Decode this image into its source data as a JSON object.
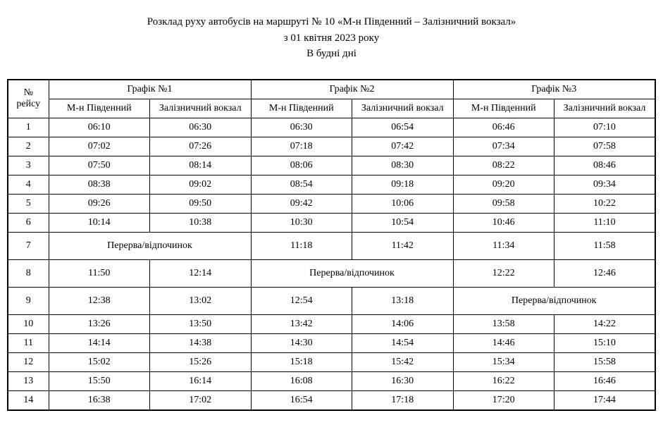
{
  "title": {
    "line1": "Розклад руху автобусів на маршруті № 10  «М-н Південний – Залізничний вокзал»",
    "line2": "з 01 квітня 2023 року",
    "line3": "В будні дні"
  },
  "headers": {
    "trip_no": "№ рейсу",
    "g1": "Графік №1",
    "g2": "Графік №2",
    "g3": "Графік №3",
    "stop_a": "М-н Південний",
    "stop_b": "Залізничний вокзал"
  },
  "break_label": "Перерва/відпочинок",
  "rows": [
    {
      "n": "1",
      "g1a": "06:10",
      "g1b": "06:30",
      "g2a": "06:30",
      "g2b": "06:54",
      "g3a": "06:46",
      "g3b": "07:10"
    },
    {
      "n": "2",
      "g1a": "07:02",
      "g1b": "07:26",
      "g2a": "07:18",
      "g2b": "07:42",
      "g3a": "07:34",
      "g3b": "07:58"
    },
    {
      "n": "3",
      "g1a": "07:50",
      "g1b": "08:14",
      "g2a": "08:06",
      "g2b": "08:30",
      "g3a": "08:22",
      "g3b": "08:46"
    },
    {
      "n": "4",
      "g1a": "08:38",
      "g1b": "09:02",
      "g2a": "08:54",
      "g2b": "09:18",
      "g3a": "09:20",
      "g3b": "09:34"
    },
    {
      "n": "5",
      "g1a": "09:26",
      "g1b": "09:50",
      "g2a": "09:42",
      "g2b": "10:06",
      "g3a": "09:58",
      "g3b": "10:22"
    },
    {
      "n": "6",
      "g1a": "10:14",
      "g1b": "10:38",
      "g2a": "10:30",
      "g2b": "10:54",
      "g3a": "10:46",
      "g3b": "11:10"
    },
    {
      "n": "7",
      "g1_break": true,
      "g2a": "11:18",
      "g2b": "11:42",
      "g3a": "11:34",
      "g3b": "11:58",
      "tall": true
    },
    {
      "n": "8",
      "g1a": "11:50",
      "g1b": "12:14",
      "g2_break": true,
      "g3a": "12:22",
      "g3b": "12:46",
      "tall": true
    },
    {
      "n": "9",
      "g1a": "12:38",
      "g1b": "13:02",
      "g2a": "12:54",
      "g2b": "13:18",
      "g3_break": true,
      "tall": true
    },
    {
      "n": "10",
      "g1a": "13:26",
      "g1b": "13:50",
      "g2a": "13:42",
      "g2b": "14:06",
      "g3a": "13:58",
      "g3b": "14:22"
    },
    {
      "n": "11",
      "g1a": "14:14",
      "g1b": "14:38",
      "g2a": "14:30",
      "g2b": "14:54",
      "g3a": "14:46",
      "g3b": "15:10"
    },
    {
      "n": "12",
      "g1a": "15:02",
      "g1b": "15:26",
      "g2a": "15:18",
      "g2b": "15:42",
      "g3a": "15:34",
      "g3b": "15:58"
    },
    {
      "n": "13",
      "g1a": "15:50",
      "g1b": "16:14",
      "g2a": "16:08",
      "g2b": "16:30",
      "g3a": "16:22",
      "g3b": "16:46"
    },
    {
      "n": "14",
      "g1a": "16:38",
      "g1b": "17:02",
      "g2a": "16:54",
      "g2b": "17:18",
      "g3a": "17:20",
      "g3b": "17:44"
    }
  ],
  "style": {
    "font_family": "Times New Roman",
    "title_fontsize": 15,
    "cell_fontsize": 14,
    "border_color": "#000000",
    "background_color": "#ffffff",
    "text_color": "#000000"
  }
}
